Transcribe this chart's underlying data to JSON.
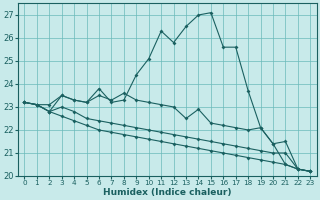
{
  "xlabel": "Humidex (Indice chaleur)",
  "ylabel": "",
  "xlim": [
    -0.5,
    23.5
  ],
  "ylim": [
    20,
    27.5
  ],
  "yticks": [
    20,
    21,
    22,
    23,
    24,
    25,
    26,
    27
  ],
  "xticks": [
    0,
    1,
    2,
    3,
    4,
    5,
    6,
    7,
    8,
    9,
    10,
    11,
    12,
    13,
    14,
    15,
    16,
    17,
    18,
    19,
    20,
    21,
    22,
    23
  ],
  "background_color": "#c8eaea",
  "grid_color": "#6ababa",
  "line_color": "#1a6060",
  "lines": [
    [
      23.2,
      23.1,
      23.1,
      23.5,
      23.3,
      23.2,
      23.8,
      23.2,
      23.3,
      24.4,
      25.1,
      26.3,
      25.8,
      26.5,
      27.0,
      27.1,
      25.6,
      25.6,
      23.7,
      22.1,
      21.4,
      20.5,
      20.3,
      20.2
    ],
    [
      23.2,
      23.1,
      22.8,
      23.5,
      23.3,
      23.2,
      23.5,
      23.3,
      23.6,
      23.3,
      23.2,
      23.1,
      23.0,
      22.5,
      22.9,
      22.3,
      22.2,
      22.1,
      22.0,
      22.1,
      21.4,
      21.5,
      20.3,
      20.2
    ],
    [
      23.2,
      23.1,
      22.8,
      23.0,
      22.8,
      22.5,
      22.4,
      22.3,
      22.2,
      22.1,
      22.0,
      21.9,
      21.8,
      21.7,
      21.6,
      21.5,
      21.4,
      21.3,
      21.2,
      21.1,
      21.0,
      21.0,
      20.3,
      20.2
    ],
    [
      23.2,
      23.1,
      22.8,
      22.6,
      22.4,
      22.2,
      22.0,
      21.9,
      21.8,
      21.7,
      21.6,
      21.5,
      21.4,
      21.3,
      21.2,
      21.1,
      21.0,
      20.9,
      20.8,
      20.7,
      20.6,
      20.5,
      20.3,
      20.2
    ]
  ]
}
